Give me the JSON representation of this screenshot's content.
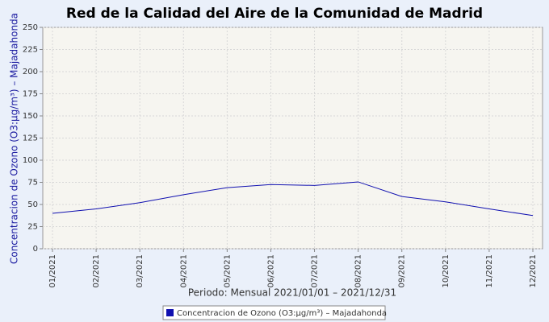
{
  "chart_data": {
    "type": "line",
    "title": "Red de la Calidad del Aire de la Comunidad de Madrid",
    "x_label": "Periodo: Mensual 2021/01/01 – 2021/12/31",
    "y_label": "Concentracion de Ozono (O3:µg/m³) – Majadahonda",
    "categories": [
      "01/2021",
      "02/2021",
      "03/2021",
      "04/2021",
      "05/2021",
      "06/2021",
      "07/2021",
      "08/2021",
      "09/2021",
      "10/2021",
      "11/2021",
      "12/2021"
    ],
    "series": [
      {
        "name": "Concentracion de Ozono (O3:µg/m³) – Majadahonda",
        "color": "#1010b0",
        "values": [
          40,
          45,
          52,
          61,
          69,
          72.5,
          71.5,
          75.5,
          59,
          53,
          45,
          37.5
        ]
      }
    ],
    "ylim": [
      0,
      250
    ],
    "yticks": [
      0,
      25,
      50,
      75,
      100,
      125,
      150,
      175,
      200,
      225,
      250
    ],
    "grid": true,
    "legend": "bottom"
  }
}
